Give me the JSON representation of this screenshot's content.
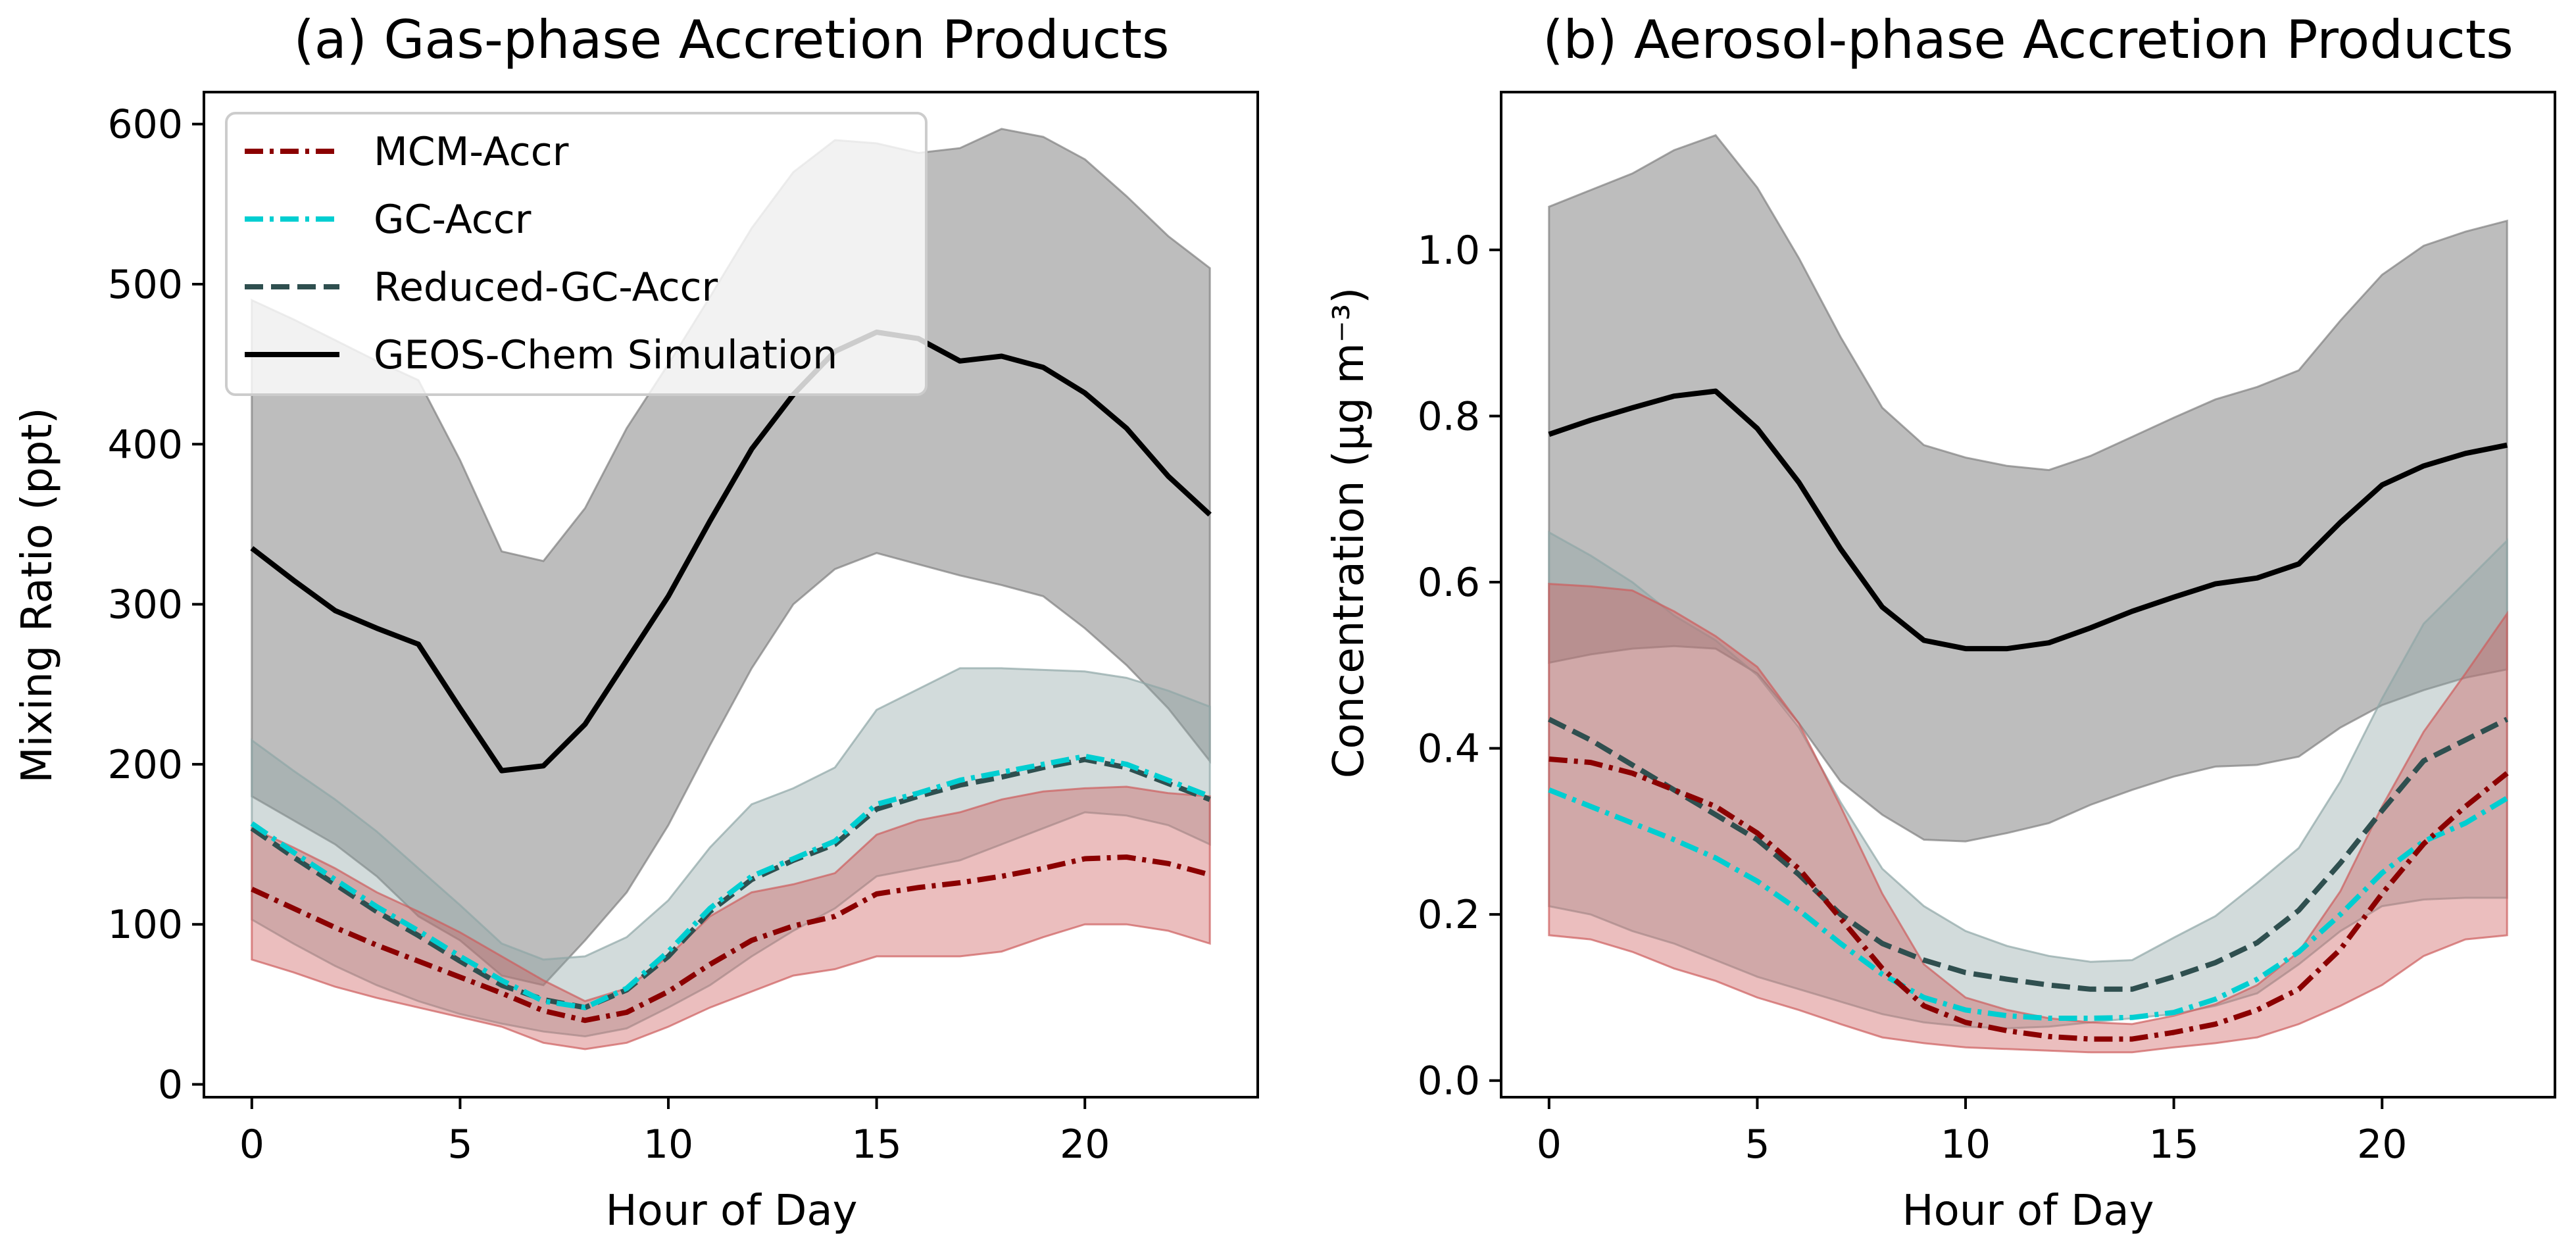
{
  "colors": {
    "mcm": "#8b0000",
    "gc": "#00ced1",
    "reduced": "#2f4f4f",
    "geos": "#000000",
    "mcm_band": "#cd5c5c",
    "reduced_band": "#8fa6a6",
    "geos_band": "#808080"
  },
  "legend": {
    "entries": [
      {
        "key": "mcm",
        "label": "MCM-Accr",
        "style": "dashdot"
      },
      {
        "key": "gc",
        "label": "GC-Accr",
        "style": "dashdot"
      },
      {
        "key": "reduced",
        "label": "Reduced-GC-Accr",
        "style": "dashed"
      },
      {
        "key": "geos",
        "label": "GEOS-Chem Simulation",
        "style": "solid"
      }
    ]
  },
  "chart_data": [
    {
      "type": "line",
      "title": "(a) Gas-phase Accretion Products",
      "xlabel": "Hour of Day",
      "ylabel": "Mixing Ratio (ppt)",
      "xlim": [
        -1.15,
        24.15
      ],
      "ylim": [
        -8,
        620
      ],
      "xticks": [
        0,
        5,
        10,
        15,
        20
      ],
      "yticks": [
        0,
        100,
        200,
        300,
        400,
        500,
        600
      ],
      "ytick_labels": [
        "0",
        "100",
        "200",
        "300",
        "400",
        "500",
        "600"
      ],
      "x": [
        0,
        1,
        2,
        3,
        4,
        5,
        6,
        7,
        8,
        9,
        10,
        11,
        12,
        13,
        14,
        15,
        16,
        17,
        18,
        19,
        20,
        21,
        22,
        23
      ],
      "series": [
        {
          "key": "geos",
          "name": "GEOS-Chem Simulation",
          "values": [
            335,
            315,
            296,
            285,
            275,
            235,
            196,
            199,
            225,
            265,
            305,
            352,
            397,
            431,
            458,
            470,
            466,
            452,
            455,
            448,
            432,
            410,
            380,
            356
          ],
          "band_lower": [
            180,
            165,
            150,
            130,
            105,
            90,
            68,
            62,
            90,
            120,
            162,
            212,
            260,
            300,
            322,
            332,
            325,
            318,
            312,
            305,
            285,
            262,
            235,
            202
          ],
          "band_upper": [
            490,
            478,
            465,
            452,
            440,
            390,
            333,
            327,
            360,
            410,
            450,
            492,
            535,
            570,
            590,
            588,
            582,
            585,
            597,
            592,
            578,
            555,
            530,
            510
          ]
        },
        {
          "key": "reduced",
          "name": "Reduced-GC-Accr",
          "values": [
            160,
            142,
            125,
            108,
            93,
            77,
            62,
            53,
            48,
            59,
            80,
            108,
            128,
            140,
            150,
            172,
            180,
            187,
            192,
            198,
            203,
            198,
            188,
            178
          ],
          "band_lower": [
            103,
            88,
            74,
            62,
            52,
            44,
            38,
            33,
            30,
            35,
            48,
            62,
            80,
            96,
            110,
            130,
            135,
            140,
            150,
            160,
            170,
            168,
            162,
            150
          ],
          "band_upper": [
            215,
            196,
            178,
            158,
            135,
            112,
            88,
            78,
            80,
            92,
            115,
            148,
            175,
            185,
            198,
            234,
            247,
            260,
            260,
            259,
            258,
            254,
            246,
            236
          ]
        },
        {
          "key": "gc",
          "name": "GC-Accr",
          "values": [
            163,
            145,
            128,
            111,
            96,
            80,
            65,
            52,
            48,
            60,
            83,
            110,
            130,
            141,
            152,
            175,
            182,
            190,
            195,
            200,
            205,
            200,
            190,
            180
          ]
        },
        {
          "key": "mcm",
          "name": "MCM-Accr",
          "values": [
            122,
            110,
            98,
            87,
            77,
            67,
            57,
            46,
            40,
            45,
            58,
            75,
            90,
            99,
            105,
            119,
            123,
            126,
            130,
            135,
            141,
            142,
            138,
            131
          ],
          "band_lower": [
            78,
            70,
            61,
            54,
            48,
            42,
            36,
            26,
            22,
            26,
            36,
            48,
            58,
            68,
            72,
            80,
            80,
            80,
            83,
            92,
            100,
            100,
            96,
            88
          ],
          "band_upper": [
            160,
            148,
            135,
            120,
            108,
            95,
            80,
            65,
            52,
            60,
            80,
            105,
            120,
            125,
            132,
            156,
            165,
            170,
            178,
            183,
            185,
            186,
            182,
            180
          ]
        }
      ]
    },
    {
      "type": "line",
      "title": "(b) Aerosol-phase Accretion Products",
      "xlabel": "Hour of Day",
      "ylabel": "Concentration (µg m⁻³)",
      "xlim": [
        -1.15,
        24.15
      ],
      "ylim": [
        -0.02,
        1.19
      ],
      "xticks": [
        0,
        5,
        10,
        15,
        20
      ],
      "yticks": [
        0,
        0.2,
        0.4,
        0.6,
        0.8,
        1.0
      ],
      "ytick_labels": [
        "0.0",
        "0.2",
        "0.4",
        "0.6",
        "0.8",
        "1.0"
      ],
      "x": [
        0,
        1,
        2,
        3,
        4,
        5,
        6,
        7,
        8,
        9,
        10,
        11,
        12,
        13,
        14,
        15,
        16,
        17,
        18,
        19,
        20,
        21,
        22,
        23
      ],
      "series": [
        {
          "key": "geos",
          "name": "GEOS-Chem Simulation",
          "values": [
            0.778,
            0.795,
            0.81,
            0.824,
            0.83,
            0.785,
            0.72,
            0.64,
            0.57,
            0.53,
            0.52,
            0.52,
            0.527,
            0.545,
            0.565,
            0.582,
            0.598,
            0.605,
            0.622,
            0.672,
            0.717,
            0.74,
            0.755,
            0.765
          ],
          "band_lower": [
            0.503,
            0.513,
            0.52,
            0.523,
            0.52,
            0.49,
            0.43,
            0.36,
            0.32,
            0.29,
            0.288,
            0.298,
            0.31,
            0.332,
            0.35,
            0.366,
            0.378,
            0.38,
            0.39,
            0.425,
            0.452,
            0.47,
            0.485,
            0.495
          ],
          "band_upper": [
            1.052,
            1.072,
            1.092,
            1.12,
            1.138,
            1.075,
            0.99,
            0.895,
            0.81,
            0.765,
            0.75,
            0.74,
            0.735,
            0.752,
            0.775,
            0.798,
            0.82,
            0.835,
            0.855,
            0.915,
            0.97,
            1.005,
            1.022,
            1.035
          ]
        },
        {
          "key": "reduced",
          "name": "Reduced-GC-Accr",
          "values": [
            0.435,
            0.41,
            0.38,
            0.35,
            0.32,
            0.29,
            0.248,
            0.2,
            0.165,
            0.145,
            0.13,
            0.122,
            0.115,
            0.11,
            0.11,
            0.125,
            0.142,
            0.166,
            0.205,
            0.262,
            0.325,
            0.385,
            0.41,
            0.435
          ],
          "band_lower": [
            0.21,
            0.2,
            0.18,
            0.165,
            0.145,
            0.125,
            0.11,
            0.095,
            0.08,
            0.07,
            0.065,
            0.063,
            0.065,
            0.07,
            0.075,
            0.08,
            0.09,
            0.105,
            0.14,
            0.18,
            0.21,
            0.218,
            0.22,
            0.22
          ],
          "band_upper": [
            0.66,
            0.632,
            0.6,
            0.56,
            0.53,
            0.488,
            0.425,
            0.335,
            0.255,
            0.21,
            0.18,
            0.162,
            0.15,
            0.143,
            0.145,
            0.172,
            0.198,
            0.238,
            0.28,
            0.36,
            0.46,
            0.55,
            0.6,
            0.65
          ]
        },
        {
          "key": "gc",
          "name": "GC-Accr",
          "values": [
            0.35,
            0.33,
            0.31,
            0.29,
            0.268,
            0.24,
            0.205,
            0.165,
            0.128,
            0.1,
            0.085,
            0.078,
            0.075,
            0.075,
            0.076,
            0.082,
            0.098,
            0.122,
            0.155,
            0.2,
            0.25,
            0.288,
            0.31,
            0.34
          ]
        },
        {
          "key": "mcm",
          "name": "MCM-Accr",
          "values": [
            0.387,
            0.383,
            0.37,
            0.35,
            0.33,
            0.298,
            0.255,
            0.195,
            0.135,
            0.09,
            0.07,
            0.06,
            0.053,
            0.05,
            0.05,
            0.058,
            0.068,
            0.085,
            0.11,
            0.158,
            0.225,
            0.285,
            0.33,
            0.37
          ],
          "band_lower": [
            0.175,
            0.17,
            0.155,
            0.135,
            0.12,
            0.1,
            0.085,
            0.068,
            0.052,
            0.045,
            0.04,
            0.038,
            0.036,
            0.034,
            0.034,
            0.04,
            0.045,
            0.052,
            0.068,
            0.09,
            0.115,
            0.15,
            0.17,
            0.175
          ],
          "band_upper": [
            0.598,
            0.595,
            0.59,
            0.565,
            0.535,
            0.498,
            0.43,
            0.33,
            0.225,
            0.14,
            0.1,
            0.085,
            0.075,
            0.07,
            0.068,
            0.078,
            0.092,
            0.115,
            0.155,
            0.228,
            0.33,
            0.42,
            0.49,
            0.562
          ]
        }
      ]
    }
  ]
}
